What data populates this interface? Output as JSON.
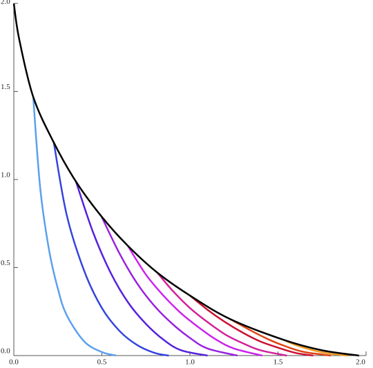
{
  "chart_data": {
    "type": "line",
    "xlim": [
      0,
      2
    ],
    "ylim": [
      0,
      2
    ],
    "xticks": [
      {
        "value": 0,
        "label": "0.0"
      },
      0.5,
      {
        "value": 1,
        "label": "1.0"
      },
      1.5,
      {
        "value": 2,
        "label": "2.0"
      }
    ],
    "yticks": [
      {
        "value": 0,
        "label": "0.0"
      },
      0.5,
      {
        "value": 1,
        "label": "1.0"
      },
      1.5,
      {
        "value": 2,
        "label": "2.0"
      }
    ],
    "series": [
      {
        "color": "#5aa0ee",
        "x": [
          0.11,
          0.15,
          0.2,
          0.25,
          0.3,
          0.4,
          0.5,
          0.58
        ],
        "values": [
          1.47,
          0.95,
          0.6,
          0.38,
          0.23,
          0.08,
          0.02,
          0
        ]
      },
      {
        "color": "#3344dd",
        "x": [
          0.227,
          0.3,
          0.4,
          0.5,
          0.6,
          0.7,
          0.8,
          0.88
        ],
        "values": [
          1.21,
          0.8,
          0.48,
          0.27,
          0.14,
          0.06,
          0.015,
          0
        ]
      },
      {
        "color": "#5522dd",
        "x": [
          0.353,
          0.45,
          0.55,
          0.65,
          0.75,
          0.85,
          0.95,
          1.1
        ],
        "values": [
          0.988,
          0.7,
          0.47,
          0.3,
          0.18,
          0.09,
          0.03,
          0
        ]
      },
      {
        "color": "#9922dd",
        "x": [
          0.498,
          0.6,
          0.7,
          0.8,
          0.9,
          1.0,
          1.1,
          1.27
        ],
        "values": [
          0.79,
          0.58,
          0.41,
          0.28,
          0.18,
          0.1,
          0.04,
          0
        ]
      },
      {
        "color": "#cc22ee",
        "x": [
          0.647,
          0.75,
          0.85,
          0.95,
          1.05,
          1.15,
          1.25,
          1.41
        ],
        "values": [
          0.624,
          0.46,
          0.34,
          0.24,
          0.16,
          0.09,
          0.04,
          0
        ]
      },
      {
        "color": "#d4209a",
        "x": [
          0.816,
          0.9,
          1.0,
          1.1,
          1.2,
          1.3,
          1.4,
          1.55
        ],
        "values": [
          0.47,
          0.37,
          0.27,
          0.19,
          0.12,
          0.07,
          0.03,
          0
        ]
      },
      {
        "color": "#cc1133",
        "x": [
          1.0,
          1.1,
          1.2,
          1.3,
          1.4,
          1.5,
          1.6,
          1.7
        ],
        "values": [
          0.341,
          0.26,
          0.19,
          0.13,
          0.08,
          0.045,
          0.015,
          0
        ]
      },
      {
        "color": "#dd4411",
        "x": [
          1.227,
          1.35,
          1.45,
          1.55,
          1.65,
          1.8
        ],
        "values": [
          0.208,
          0.14,
          0.09,
          0.05,
          0.02,
          0
        ]
      },
      {
        "color": "#ee9922",
        "x": [
          1.53,
          1.6,
          1.7,
          1.8,
          1.9
        ],
        "values": [
          0.09,
          0.06,
          0.03,
          0.01,
          0
        ]
      },
      {
        "color": "#000000",
        "x": [
          0,
          0.03,
          0.11,
          0.227,
          0.353,
          0.498,
          0.647,
          0.816,
          1.0,
          1.227,
          1.53,
          1.75,
          1.96
        ],
        "values": [
          2,
          1.8,
          1.47,
          1.21,
          0.988,
          0.79,
          0.624,
          0.47,
          0.341,
          0.208,
          0.09,
          0.03,
          0
        ]
      }
    ]
  }
}
